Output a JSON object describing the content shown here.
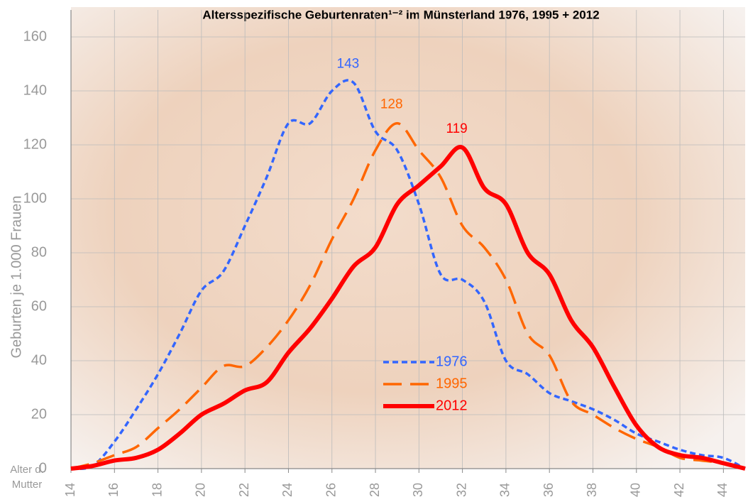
{
  "chart_data": {
    "type": "line",
    "title": "Altersspezifische Geburtenraten¹⁻² im Münsterland 1976, 1995 + 2012",
    "y_label": "Geburten je 1.000 Frauen",
    "x_label": [
      "Alter d.",
      "Mutter"
    ],
    "x": [
      14,
      15,
      16,
      17,
      18,
      19,
      20,
      21,
      22,
      23,
      24,
      25,
      26,
      27,
      28,
      29,
      30,
      31,
      32,
      33,
      34,
      35,
      36,
      37,
      38,
      39,
      40,
      41,
      42,
      43,
      44,
      45
    ],
    "xlim": [
      14,
      45
    ],
    "xticks": [
      14,
      16,
      18,
      20,
      22,
      24,
      26,
      28,
      30,
      32,
      34,
      36,
      38,
      40,
      42,
      44
    ],
    "ylim": [
      0,
      170
    ],
    "yticks": [
      0,
      20,
      40,
      60,
      80,
      100,
      120,
      140,
      160
    ],
    "grid": true,
    "legend": "center",
    "series": [
      {
        "name": "1976",
        "color": "#3366ff",
        "line_style": "dotted",
        "values": [
          0,
          1,
          10,
          22,
          35,
          50,
          66,
          73,
          90,
          108,
          128,
          128,
          140,
          143,
          125,
          118,
          98,
          72,
          70,
          62,
          40,
          35,
          28,
          25,
          22,
          18,
          13,
          10,
          7,
          5,
          4,
          0
        ]
      },
      {
        "name": "1995",
        "color": "#ff6600",
        "line_style": "dashed",
        "values": [
          0,
          2,
          5,
          8,
          15,
          22,
          30,
          38,
          38,
          45,
          55,
          68,
          85,
          100,
          118,
          128,
          118,
          108,
          90,
          82,
          70,
          50,
          42,
          25,
          20,
          15,
          11,
          8,
          4,
          3,
          2,
          0
        ]
      },
      {
        "name": "2012",
        "color": "#ff0000",
        "line_style": "solid",
        "values": [
          0,
          1,
          3,
          4,
          7,
          13,
          20,
          24,
          29,
          32,
          43,
          52,
          63,
          75,
          82,
          98,
          105,
          112,
          119,
          104,
          98,
          80,
          72,
          55,
          45,
          30,
          16,
          8,
          5,
          4,
          2,
          0
        ]
      }
    ]
  }
}
